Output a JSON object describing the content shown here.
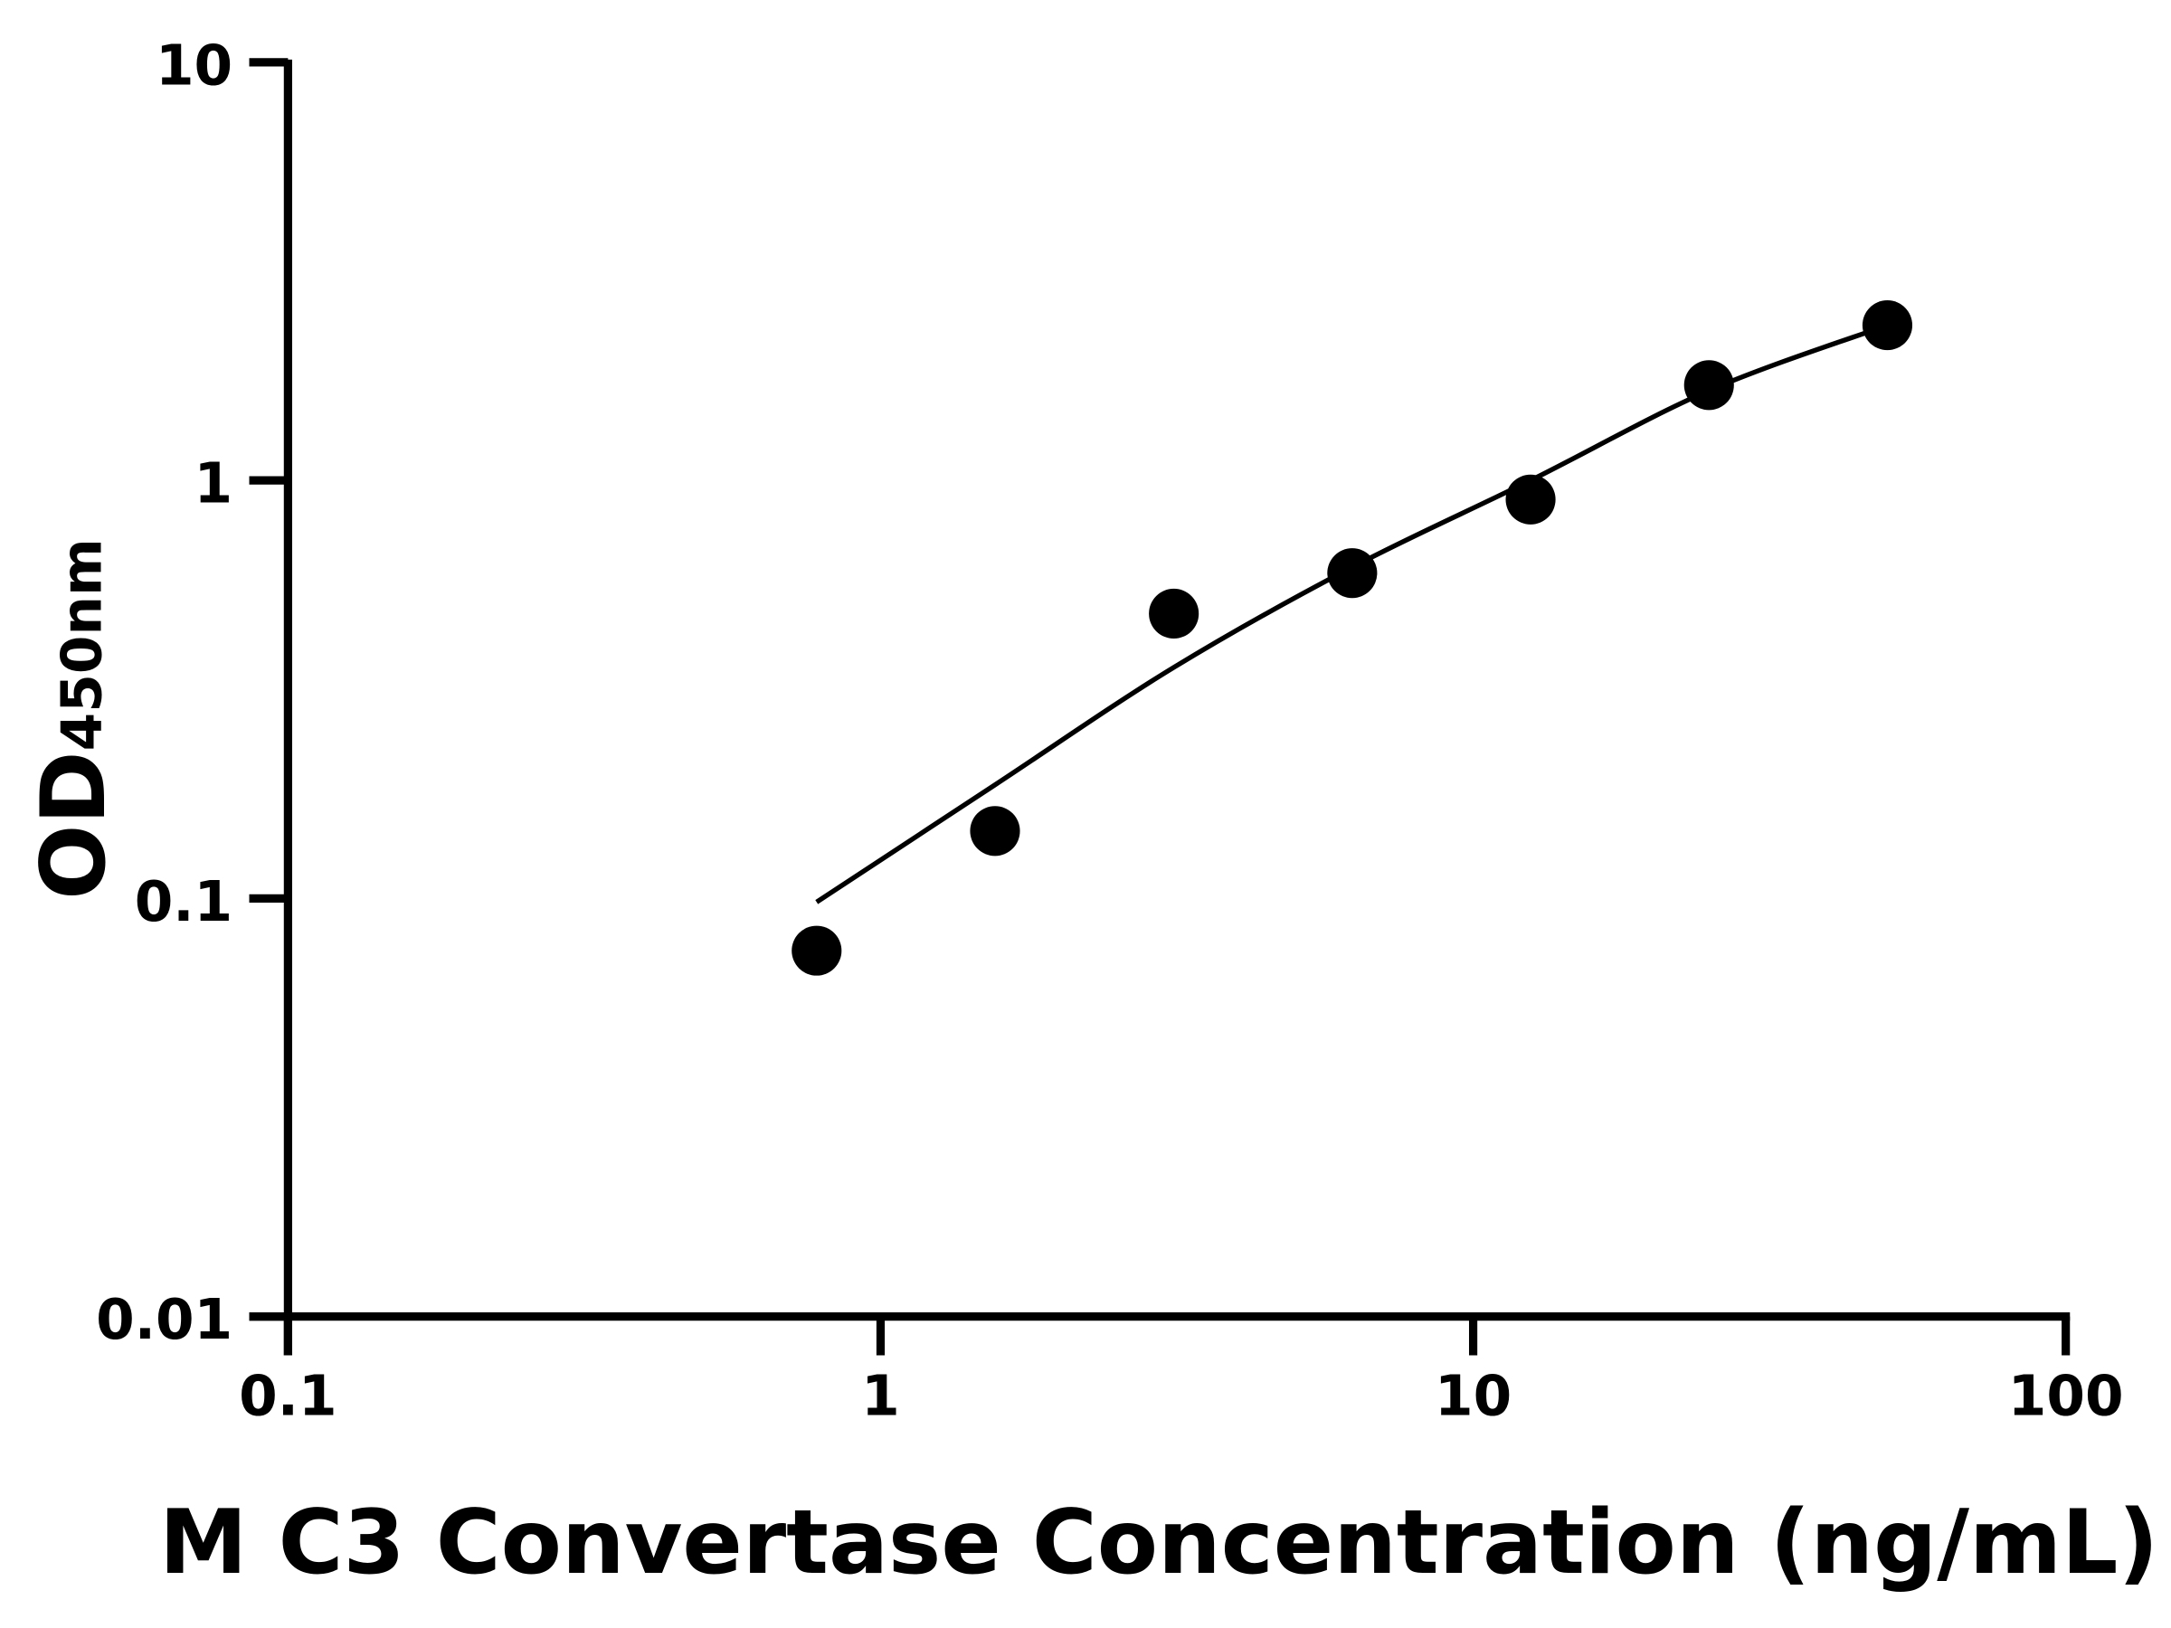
{
  "chart_data": {
    "type": "scatter",
    "title": "",
    "xlabel": "M C3 Convertase Concentration (ng/mL)",
    "ylabel": {
      "main": "OD",
      "subscript": "450nm"
    },
    "xscale": "log",
    "yscale": "log",
    "xlim": [
      0.1,
      100
    ],
    "ylim": [
      0.01,
      10
    ],
    "xticks": [
      "0.1",
      "1",
      "10",
      "100"
    ],
    "yticks": [
      "0.01",
      "0.1",
      "1",
      "10"
    ],
    "grid": false,
    "legend": "none",
    "color": "#000000",
    "points": {
      "x": [
        0.78,
        1.56,
        3.125,
        6.25,
        12.5,
        25,
        50
      ],
      "y": [
        0.075,
        0.145,
        0.48,
        0.6,
        0.9,
        1.69,
        2.35
      ]
    },
    "fit_curve": {
      "x": [
        0.78,
        1.56,
        3.125,
        6.25,
        12.5,
        25,
        50
      ],
      "y": [
        0.098,
        0.187,
        0.357,
        0.62,
        1.0,
        1.64,
        2.35
      ]
    }
  }
}
